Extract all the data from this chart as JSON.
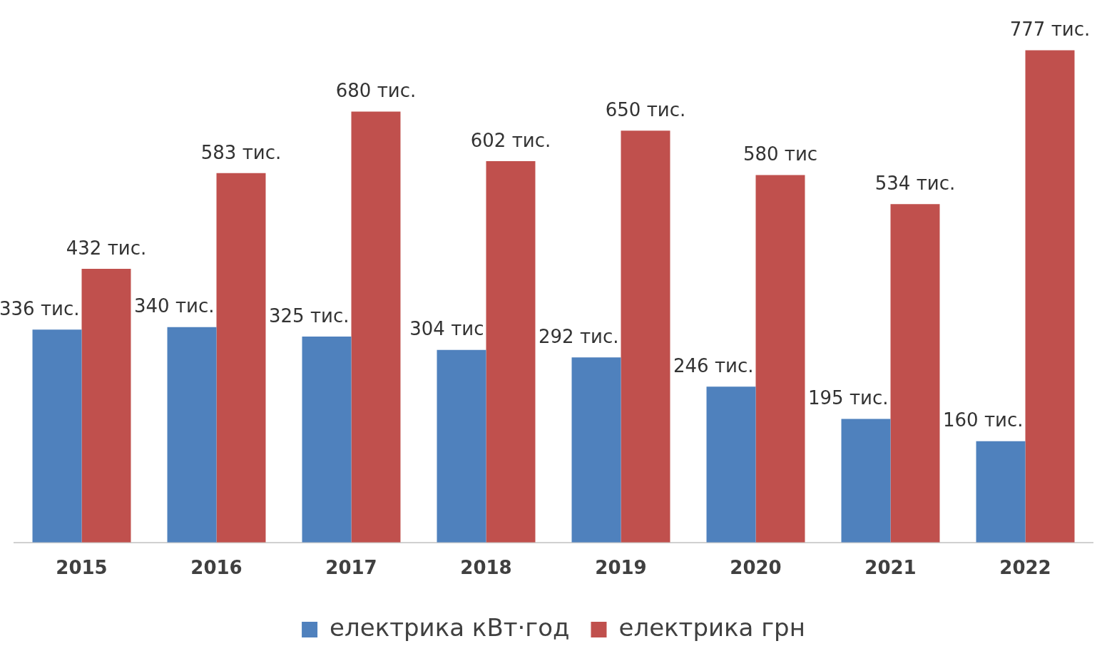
{
  "chart_data": {
    "type": "bar",
    "categories": [
      "2015",
      "2016",
      "2017",
      "2018",
      "2019",
      "2020",
      "2021",
      "2022"
    ],
    "series": [
      {
        "name": "електрика кВт·год",
        "color": "#4f81bd",
        "values": [
          336,
          340,
          325,
          304,
          292,
          246,
          195,
          160
        ],
        "value_labels": [
          "336 тис.",
          "340 тис.",
          "325 тис.",
          "304 тис",
          "292 тис.",
          "246 тис.",
          "195 тис.",
          "160 тис."
        ]
      },
      {
        "name": "електрика грн",
        "color": "#c0504d",
        "values": [
          432,
          583,
          680,
          602,
          650,
          580,
          534,
          777
        ],
        "value_labels": [
          "432 тис.",
          "583 тис.",
          "680 тис.",
          "602 тис.",
          "650 тис.",
          "580 тис",
          "534 тис.",
          "777 тис."
        ]
      }
    ],
    "grid": false,
    "legend": "bottom",
    "tick_labels": "x"
  }
}
